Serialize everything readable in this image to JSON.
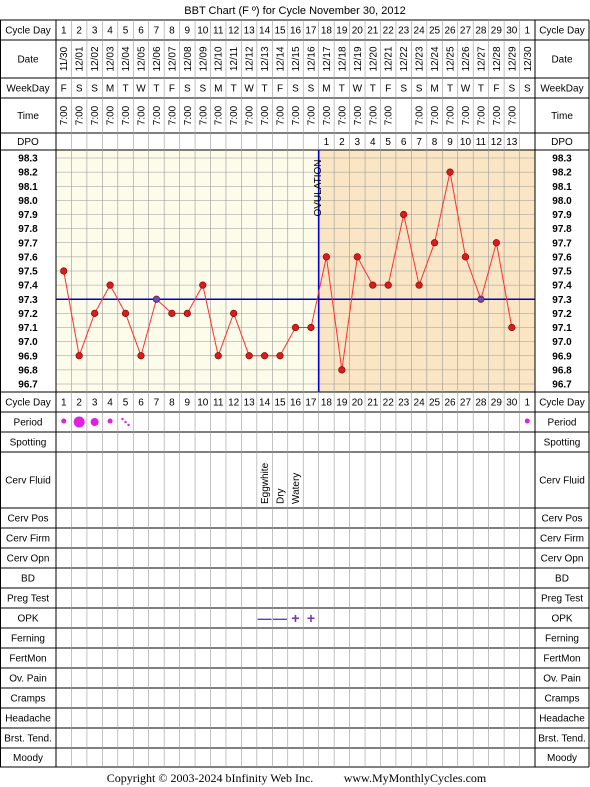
{
  "page": {
    "title": "BBT Chart (F º) for Cycle November 30, 2012",
    "copyright": "Copyright © 2003-2024 bInfinity Web Inc.",
    "site": "www.MyMonthlyCycles.com"
  },
  "labels": {
    "cycle_day": "Cycle Day",
    "date": "Date",
    "weekday": "WeekDay",
    "time": "Time",
    "dpo": "DPO",
    "ovulation": "OVULATION",
    "period": "Period",
    "spotting": "Spotting",
    "cerv_fluid": "Cerv Fluid",
    "cerv_pos": "Cerv Pos",
    "cerv_firm": "Cerv Firm",
    "cerv_opn": "Cerv Opn",
    "bd": "BD",
    "preg_test": "Preg Test",
    "opk": "OPK",
    "ferning": "Ferning",
    "fertmon": "FertMon",
    "ov_pain": "Ov. Pain",
    "cramps": "Cramps",
    "headache": "Headache",
    "brst_tend": "Brst. Tend.",
    "moody": "Moody"
  },
  "colors": {
    "grid": "#999999",
    "border": "#000000",
    "pre_ovulation_bg": "#fdfbea",
    "post_ovulation_bg": "#fae6c4",
    "temp_line": "#ff3030",
    "point_fill": "#d81b1b",
    "coverline_point_fill": "#6a4ab8",
    "coverline": "#0000cc",
    "period": "#e020e0",
    "opk": "#6a3ab8"
  },
  "cycle_days": [
    "1",
    "2",
    "3",
    "4",
    "5",
    "6",
    "7",
    "8",
    "9",
    "10",
    "11",
    "12",
    "13",
    "14",
    "15",
    "16",
    "17",
    "18",
    "19",
    "20",
    "21",
    "22",
    "23",
    "24",
    "25",
    "26",
    "27",
    "28",
    "29",
    "30",
    "1"
  ],
  "dates": [
    "11/30",
    "12/01",
    "12/02",
    "12/03",
    "12/04",
    "12/05",
    "12/06",
    "12/07",
    "12/08",
    "12/09",
    "12/10",
    "12/11",
    "12/12",
    "12/13",
    "12/14",
    "12/15",
    "12/16",
    "12/17",
    "12/18",
    "12/19",
    "12/20",
    "12/21",
    "12/22",
    "12/23",
    "12/24",
    "12/25",
    "12/26",
    "12/27",
    "12/28",
    "12/29",
    "12/30"
  ],
  "weekdays": [
    "F",
    "S",
    "S",
    "M",
    "T",
    "W",
    "T",
    "F",
    "S",
    "S",
    "M",
    "T",
    "W",
    "T",
    "F",
    "S",
    "S",
    "M",
    "T",
    "W",
    "T",
    "F",
    "S",
    "S",
    "M",
    "T",
    "W",
    "T",
    "F",
    "S",
    "S"
  ],
  "times": [
    "7:00",
    "7:00",
    "7:00",
    "7:00",
    "7:00",
    "7:00",
    "7:00",
    "7:00",
    "7:00",
    "7:00",
    "7:00",
    "7:00",
    "7:00",
    "7:00",
    "7:00",
    "7:00",
    "7:00",
    "7:00",
    "7:00",
    "7:00",
    "7:00",
    "7:00",
    "",
    "7:00",
    "7:00",
    "7:00",
    "7:00",
    "7:00",
    "7:00",
    "7:00",
    ""
  ],
  "dpo": [
    "",
    "",
    "",
    "",
    "",
    "",
    "",
    "",
    "",
    "",
    "",
    "",
    "",
    "",
    "",
    "",
    "",
    "1",
    "2",
    "3",
    "4",
    "5",
    "6",
    "7",
    "8",
    "9",
    "10",
    "11",
    "12",
    "13",
    ""
  ],
  "temp_axis": [
    "98.3",
    "98.2",
    "98.1",
    "98.0",
    "97.9",
    "97.8",
    "97.7",
    "97.6",
    "97.5",
    "97.4",
    "97.3",
    "97.2",
    "97.1",
    "97.0",
    "96.9",
    "96.8",
    "96.7"
  ],
  "cervical_fluid": [
    "",
    "",
    "",
    "",
    "",
    "",
    "",
    "",
    "",
    "",
    "",
    "",
    "",
    "Eggwhite",
    "Dry",
    "Watery",
    "",
    "",
    "",
    "",
    "",
    "",
    "",
    "",
    "",
    "",
    "",
    "",
    "",
    "",
    ""
  ],
  "opk": [
    "",
    "",
    "",
    "",
    "",
    "",
    "",
    "",
    "",
    "",
    "",
    "",
    "",
    "—",
    "—",
    "+",
    "+",
    "",
    "",
    "",
    "",
    "",
    "",
    "",
    "",
    "",
    "",
    "",
    "",
    "",
    ""
  ],
  "period_sizes": [
    "s",
    "l",
    "m",
    "s",
    "d",
    "",
    "",
    "",
    "",
    "",
    "",
    "",
    "",
    "",
    "",
    "",
    "",
    "",
    "",
    "",
    "",
    "",
    "",
    "",
    "",
    "",
    "",
    "",
    "",
    "",
    "s"
  ],
  "chart_data": {
    "type": "line",
    "title": "BBT Chart (F º) for Cycle November 30, 2012",
    "x": [
      1,
      2,
      3,
      4,
      5,
      6,
      7,
      8,
      9,
      10,
      11,
      12,
      13,
      14,
      15,
      16,
      17,
      18,
      19,
      20,
      21,
      22,
      23,
      24,
      25,
      26,
      27,
      28,
      29,
      30
    ],
    "series": [
      {
        "values": [
          97.5,
          96.9,
          97.2,
          97.4,
          97.2,
          96.9,
          97.3,
          97.2,
          97.2,
          97.4,
          96.9,
          97.2,
          96.9,
          96.9,
          96.9,
          97.1,
          97.1,
          97.6,
          96.8,
          97.6,
          97.4,
          97.4,
          97.9,
          97.4,
          97.7,
          98.2,
          97.6,
          97.3,
          97.7,
          97.1
        ]
      }
    ],
    "ylim": [
      96.7,
      98.3
    ],
    "coverline": 97.3,
    "ovulation_day": 17,
    "coverline_points": [
      7,
      28
    ],
    "grid": true
  }
}
